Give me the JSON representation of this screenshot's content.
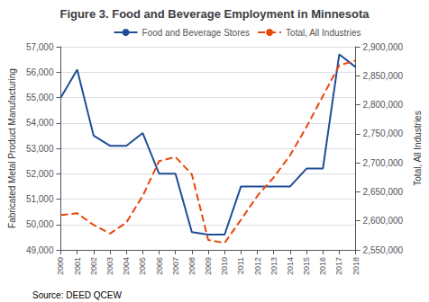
{
  "chart_data": {
    "type": "line",
    "title": "Figure 3. Food and Beverage Employment in Minnesota",
    "ylabel": "Fabricated Metal Product Manufacturing",
    "y2label": "Total, All Industries",
    "source": "Source: DEED QCEW",
    "categories": [
      "2000",
      "2001",
      "2002",
      "2003",
      "2004",
      "2005",
      "2006",
      "2007",
      "2008",
      "2009",
      "2010",
      "2011",
      "2012",
      "2013",
      "2014",
      "2015",
      "2016",
      "2017",
      "2018"
    ],
    "series": [
      {
        "name": "Food and Beverage Stores",
        "color": "#1f4e96",
        "line_style": "solid",
        "values": [
          55000,
          56100,
          53500,
          53100,
          53100,
          53600,
          52000,
          52000,
          49700,
          49600,
          49600,
          51500,
          51500,
          51500,
          51500,
          52200,
          52200,
          56700,
          56200
        ]
      },
      {
        "name": "Total, All Industries",
        "color": "#e8470a",
        "line_style": "dashed",
        "axis": "y2",
        "values": [
          2610000,
          2613000,
          2593000,
          2578000,
          2597000,
          2643000,
          2703000,
          2710000,
          2680000,
          2567000,
          2562000,
          2602000,
          2643000,
          2675000,
          2713000,
          2762000,
          2815000,
          2868000,
          2876000
        ]
      }
    ],
    "ylim": [
      49000,
      57000
    ],
    "yticks": [
      {
        "value": 49000,
        "label": "49,000"
      },
      {
        "value": 50000,
        "label": "50,000"
      },
      {
        "value": 51000,
        "label": "51,000"
      },
      {
        "value": 52000,
        "label": "52,000"
      },
      {
        "value": 53000,
        "label": "53,000"
      },
      {
        "value": 54000,
        "label": "54,000"
      },
      {
        "value": 55000,
        "label": "55,000"
      },
      {
        "value": 56000,
        "label": "56,000"
      },
      {
        "value": 57000,
        "label": "57,000"
      }
    ],
    "y2lim": [
      2550000,
      2900000
    ],
    "y2ticks": [
      {
        "value": 2550000,
        "label": "2,550,000"
      },
      {
        "value": 2600000,
        "label": "2,600,000"
      },
      {
        "value": 2650000,
        "label": "2,650,000"
      },
      {
        "value": 2700000,
        "label": "2,700,000"
      },
      {
        "value": 2750000,
        "label": "2,750,000"
      },
      {
        "value": 2800000,
        "label": "2,800,000"
      },
      {
        "value": 2850000,
        "label": "2,850,000"
      },
      {
        "value": 2900000,
        "label": "2,900,000"
      }
    ],
    "grid": true,
    "legend": "upper right"
  }
}
